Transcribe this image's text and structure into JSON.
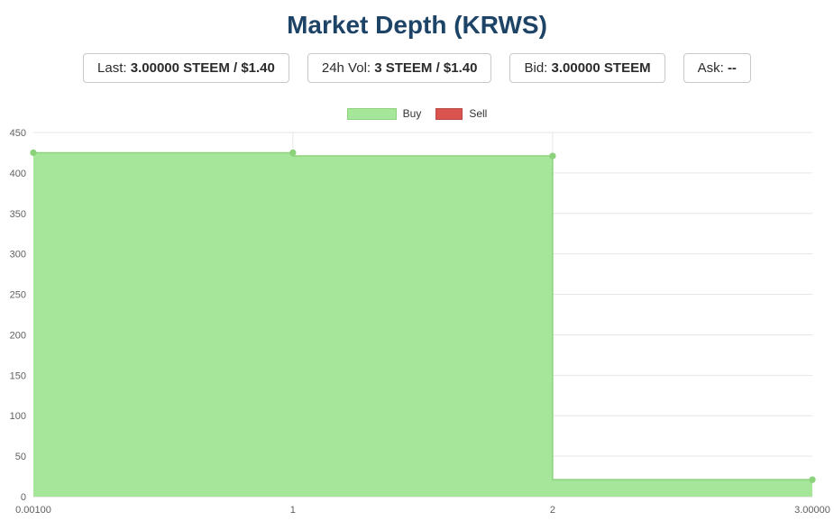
{
  "header": {
    "title": "Market Depth (KRWS)"
  },
  "stats": [
    {
      "label": "Last:",
      "value": "3.00000 STEEM / $1.40"
    },
    {
      "label": "24h Vol:",
      "value": "3 STEEM / $1.40"
    },
    {
      "label": "Bid:",
      "value": "3.00000 STEEM"
    },
    {
      "label": "Ask:",
      "value": "--"
    }
  ],
  "legend": [
    {
      "label": "Buy",
      "color": "#a6e69b",
      "border": "#8cd27c"
    },
    {
      "label": "Sell",
      "color": "#d9534f",
      "border": "#b94743"
    }
  ],
  "colors": {
    "title": "#1d4466",
    "buy_fill": "#a6e69b",
    "buy_line": "#8cd27c",
    "sell": "#d9534f",
    "grid": "#e6e6e6",
    "axis_line": "#d6d6d6",
    "axis_label": "#606060"
  },
  "chart_data": {
    "type": "area",
    "title": "Market Depth (KRWS)",
    "step": "before",
    "grid": true,
    "legend_position": "top",
    "xlim": [
      0.001,
      3
    ],
    "ylim": [
      0,
      450
    ],
    "x_ticks": [
      {
        "value": 0.001,
        "label": "0.00100"
      },
      {
        "value": 1,
        "label": "1"
      },
      {
        "value": 2,
        "label": "2"
      },
      {
        "value": 3,
        "label": "3.00000"
      }
    ],
    "y_ticks": [
      0,
      50,
      100,
      150,
      200,
      250,
      300,
      350,
      400,
      450
    ],
    "grid_color": "#e6e6e6",
    "axis_line_color": "#d6d6d6",
    "axis_label_color": "#606060",
    "series": [
      {
        "name": "Buy",
        "color": "#8cd27c",
        "fill": "#a6e69b",
        "points": [
          [
            0.001,
            425
          ],
          [
            1,
            425
          ],
          [
            2,
            421
          ],
          [
            3,
            21
          ]
        ]
      },
      {
        "name": "Sell",
        "color": "#d9534f",
        "fill": "#d9534f",
        "points": []
      }
    ]
  }
}
